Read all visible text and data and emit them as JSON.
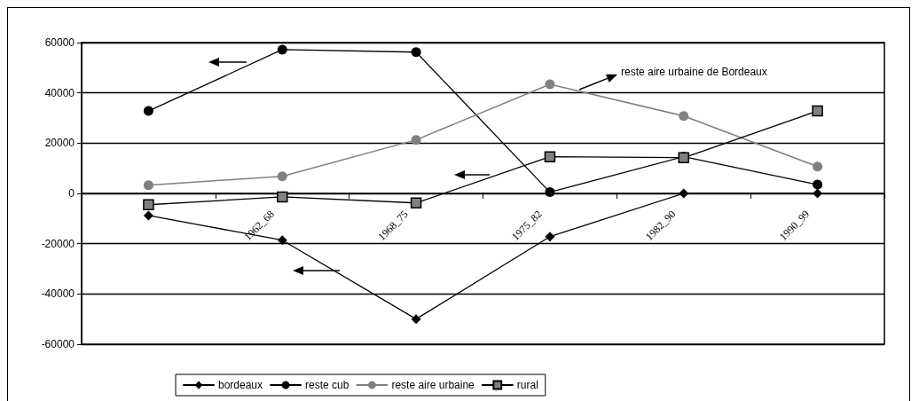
{
  "chart_data": {
    "type": "line",
    "categories": [
      null,
      "1962_68",
      "1968_75",
      "1975_82",
      "1982_90",
      "1990_99"
    ],
    "series": [
      {
        "name": "bordeaux",
        "color": "#000000",
        "marker": "diamond",
        "values": [
          -8800,
          -18600,
          -50000,
          -17200,
          0,
          0
        ]
      },
      {
        "name": "reste cub",
        "color": "#000000",
        "marker": "circle",
        "values": [
          32800,
          57200,
          56200,
          500,
          14600,
          3500
        ]
      },
      {
        "name": "reste aire urbaine",
        "color": "#808080",
        "marker": "circle",
        "values": [
          3300,
          6800,
          21300,
          43400,
          30800,
          10700
        ]
      },
      {
        "name": "rural",
        "color": "#808080",
        "marker": "square",
        "values": [
          -4500,
          -1400,
          -3800,
          14600,
          14200,
          32800
        ]
      }
    ],
    "ylim": [
      -60000,
      60000
    ],
    "yticks": [
      -60000,
      -40000,
      -20000,
      0,
      20000,
      40000,
      60000
    ],
    "grid": "y",
    "legend": "bottom",
    "annotations": [
      "reste aire urbaine de Bordeaux"
    ]
  }
}
